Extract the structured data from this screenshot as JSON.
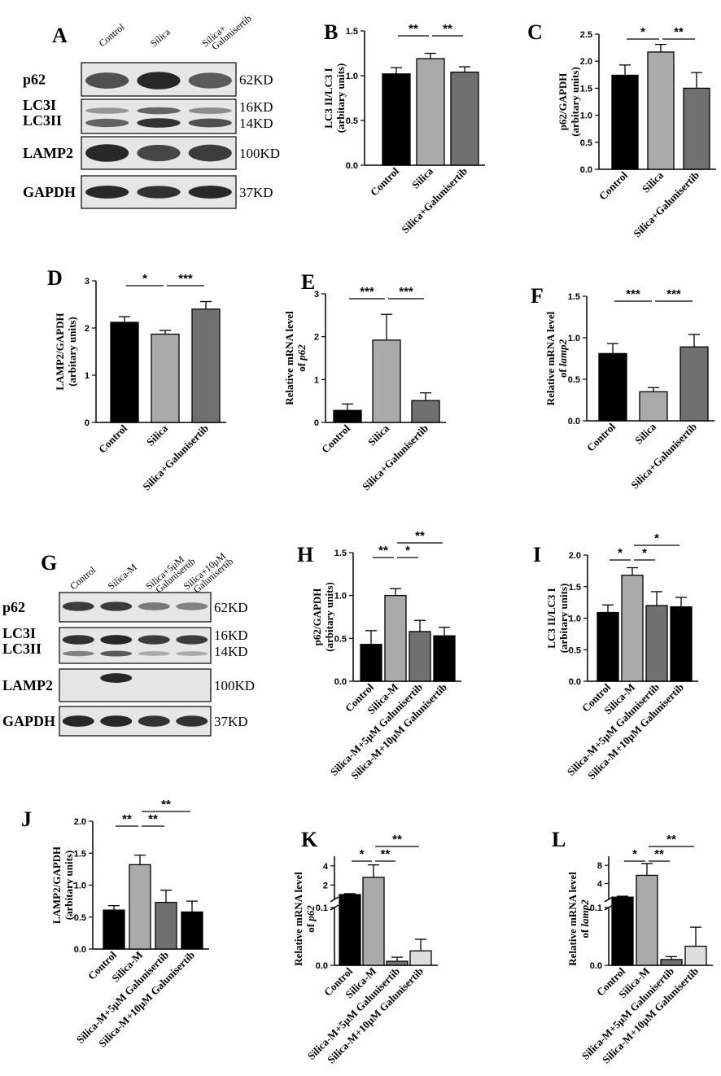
{
  "figure": {
    "blots": [
      {
        "letter": "A",
        "lanes": [
          [
            "Control"
          ],
          [
            "Silica"
          ],
          [
            "Silica+",
            "Galunisertib"
          ]
        ],
        "rows": [
          {
            "proteins": [
              "p62"
            ],
            "sizes": [
              "62KD"
            ]
          },
          {
            "proteins": [
              "LC3I",
              "LC3II"
            ],
            "sizes": [
              "16KD",
              "14KD"
            ]
          },
          {
            "proteins": [
              "LAMP2"
            ],
            "sizes": [
              "100KD"
            ]
          },
          {
            "proteins": [
              "GAPDH"
            ],
            "sizes": [
              "37KD"
            ]
          }
        ]
      },
      {
        "letter": "G",
        "lanes": [
          [
            "Control"
          ],
          [
            "Silica-M"
          ],
          [
            "Silica+5μM",
            "Galunisertib"
          ],
          [
            "Silica+10μM",
            "Galunisertib"
          ]
        ],
        "rows": [
          {
            "proteins": [
              "p62"
            ],
            "sizes": [
              "62KD"
            ]
          },
          {
            "proteins": [
              "LC3I",
              "LC3II"
            ],
            "sizes": [
              "16KD",
              "14KD"
            ]
          },
          {
            "proteins": [
              "LAMP2"
            ],
            "sizes": [
              "100KD"
            ]
          },
          {
            "proteins": [
              "GAPDH"
            ],
            "sizes": [
              "37KD"
            ]
          }
        ]
      }
    ]
  },
  "chart_data": [
    {
      "panel": "B",
      "type": "bar",
      "categories": [
        "Control",
        "Silica",
        "Silica+Galunisertib"
      ],
      "values": [
        1.02,
        1.19,
        1.04
      ],
      "errors": [
        0.07,
        0.06,
        0.06
      ],
      "colors": [
        "#000000",
        "#aaaaaa",
        "#707070"
      ],
      "ylabel": [
        "LC3 II/LC3 I",
        "(arbitary units)"
      ],
      "ylim": [
        0,
        1.5
      ],
      "ticks": [
        "0.0",
        "0.5",
        "1.0",
        "1.5"
      ],
      "significance": [
        {
          "from": 0,
          "to": 1,
          "label": "**"
        },
        {
          "from": 1,
          "to": 2,
          "label": "**"
        }
      ]
    },
    {
      "panel": "C",
      "type": "bar",
      "categories": [
        "Control",
        "Silica",
        "Silica+Galunisertib"
      ],
      "values": [
        1.74,
        2.17,
        1.5
      ],
      "errors": [
        0.19,
        0.14,
        0.29
      ],
      "colors": [
        "#000000",
        "#aaaaaa",
        "#707070"
      ],
      "ylabel": [
        "p62/GAPDH",
        "(arbitary units)"
      ],
      "ylim": [
        0,
        2.5
      ],
      "ticks": [
        "0.0",
        "0.5",
        "1.0",
        "1.5",
        "2.0",
        "2.5"
      ],
      "significance": [
        {
          "from": 0,
          "to": 1,
          "label": "*"
        },
        {
          "from": 1,
          "to": 2,
          "label": "**"
        }
      ]
    },
    {
      "panel": "D",
      "type": "bar",
      "categories": [
        "Control",
        "Silica",
        "Silica+Galunisertib"
      ],
      "values": [
        2.12,
        1.87,
        2.4
      ],
      "errors": [
        0.12,
        0.08,
        0.16
      ],
      "colors": [
        "#000000",
        "#aaaaaa",
        "#707070"
      ],
      "ylabel": [
        "LAMP2/GAPDH",
        "(arbitary units)"
      ],
      "ylim": [
        0,
        3
      ],
      "ticks": [
        "0",
        "1",
        "2",
        "3"
      ],
      "significance": [
        {
          "from": 0,
          "to": 1,
          "label": "*"
        },
        {
          "from": 1,
          "to": 2,
          "label": "***"
        }
      ]
    },
    {
      "panel": "E",
      "type": "bar",
      "categories": [
        "Control",
        "Silica",
        "Silica+Galunisertib"
      ],
      "values": [
        0.28,
        1.92,
        0.51
      ],
      "errors": [
        0.15,
        0.6,
        0.18
      ],
      "colors": [
        "#000000",
        "#aaaaaa",
        "#707070"
      ],
      "ylabel": [
        "Relative mRNA level",
        "of p62"
      ],
      "ylim": [
        0,
        3
      ],
      "ticks": [
        "0",
        "1",
        "2",
        "3"
      ],
      "significance": [
        {
          "from": 0,
          "to": 1,
          "label": "***"
        },
        {
          "from": 1,
          "to": 2,
          "label": "***"
        }
      ]
    },
    {
      "panel": "F",
      "type": "bar",
      "categories": [
        "Control",
        "Silica",
        "Silica+Galunisertib"
      ],
      "values": [
        0.81,
        0.35,
        0.89
      ],
      "errors": [
        0.12,
        0.05,
        0.15
      ],
      "colors": [
        "#000000",
        "#aaaaaa",
        "#707070"
      ],
      "ylabel": [
        "Relative mRNA level",
        "of lamp2"
      ],
      "ylim": [
        0,
        1.5
      ],
      "ticks": [
        "0.0",
        "0.5",
        "1.0",
        "1.5"
      ],
      "significance": [
        {
          "from": 0,
          "to": 1,
          "label": "***"
        },
        {
          "from": 1,
          "to": 2,
          "label": "***"
        }
      ]
    },
    {
      "panel": "H",
      "type": "bar",
      "categories": [
        "Control",
        "Silica-M",
        "Silica-M+5μM Galunisertib",
        "Silica-M+10μM Galunisertib"
      ],
      "values": [
        0.43,
        1.0,
        0.58,
        0.53
      ],
      "errors": [
        0.16,
        0.08,
        0.13,
        0.1
      ],
      "colors": [
        "#000000",
        "#aaaaaa",
        "#707070",
        "#000000"
      ],
      "ylabel": [
        "p62/GAPDH",
        "(arbitary units)"
      ],
      "ylim": [
        0,
        1.5
      ],
      "ticks": [
        "0.0",
        "0.5",
        "1.0",
        "1.5"
      ],
      "significance": [
        {
          "from": 0,
          "to": 1,
          "label": "**"
        },
        {
          "from": 1,
          "to": 2,
          "label": "*"
        },
        {
          "from": 1,
          "to": 3,
          "label": "**"
        }
      ]
    },
    {
      "panel": "I",
      "type": "bar",
      "categories": [
        "Control",
        "Silica-M",
        "Silica-M+5μM Galunisertib",
        "Silica-M+10μM Galunisertib"
      ],
      "values": [
        1.09,
        1.68,
        1.2,
        1.18
      ],
      "errors": [
        0.12,
        0.12,
        0.22,
        0.15
      ],
      "colors": [
        "#000000",
        "#aaaaaa",
        "#707070",
        "#000000"
      ],
      "ylabel": [
        "LC3 II/LC3 I",
        "(arbitary units)"
      ],
      "ylim": [
        0,
        2.0
      ],
      "ticks": [
        "0.0",
        "0.5",
        "1.0",
        "1.5",
        "2.0"
      ],
      "significance": [
        {
          "from": 0,
          "to": 1,
          "label": "*"
        },
        {
          "from": 1,
          "to": 2,
          "label": "*"
        },
        {
          "from": 1,
          "to": 3,
          "label": "*"
        }
      ]
    },
    {
      "panel": "J",
      "type": "bar",
      "categories": [
        "Control",
        "Silica-M",
        "Silica-M+5μM Galunisertib",
        "Silica-M+10μM Galunisertib"
      ],
      "values": [
        0.61,
        1.32,
        0.73,
        0.58
      ],
      "errors": [
        0.07,
        0.15,
        0.19,
        0.17
      ],
      "colors": [
        "#000000",
        "#aaaaaa",
        "#707070",
        "#000000"
      ],
      "ylabel": [
        "LAMP2/GAPDH",
        "(arbitary units)"
      ],
      "ylim": [
        0,
        2.0
      ],
      "ticks": [
        "0.0",
        "0.5",
        "1.0",
        "1.5",
        "2.0"
      ],
      "significance": [
        {
          "from": 0,
          "to": 1,
          "label": "**"
        },
        {
          "from": 1,
          "to": 2,
          "label": "**"
        },
        {
          "from": 1,
          "to": 3,
          "label": "**"
        }
      ]
    },
    {
      "panel": "K",
      "type": "bar",
      "broken_axis": true,
      "categories": [
        "Control",
        "Silica-M",
        "Silica-M+5μM Galunisertib",
        "Silica-M+10μM Galunisertib"
      ],
      "values": [
        1.0,
        2.8,
        0.007,
        0.025
      ],
      "errors": [
        0.1,
        1.3,
        0.007,
        0.02
      ],
      "colors": [
        "#000000",
        "#aaaaaa",
        "#707070",
        "#dddddd"
      ],
      "ylabel": [
        "Relative mRNA level",
        "of p62"
      ],
      "lower_ylim": [
        0,
        0.1
      ],
      "lower_ticks": [
        "0.0",
        "0.1"
      ],
      "upper_ylim": [
        0.5,
        5
      ],
      "upper_ticks": [
        "2",
        "4"
      ],
      "significance": [
        {
          "from": 0,
          "to": 1,
          "label": "*"
        },
        {
          "from": 1,
          "to": 2,
          "label": "**"
        },
        {
          "from": 1,
          "to": 3,
          "label": "**"
        }
      ]
    },
    {
      "panel": "L",
      "type": "bar",
      "broken_axis": true,
      "categories": [
        "Control",
        "Silica-M",
        "Silica-M+5μM Galunisertib",
        "Silica-M+10μM Galunisertib"
      ],
      "values": [
        1.0,
        5.8,
        0.01,
        0.033
      ],
      "errors": [
        0.2,
        2.6,
        0.005,
        0.033
      ],
      "colors": [
        "#000000",
        "#aaaaaa",
        "#707070",
        "#dddddd"
      ],
      "ylabel": [
        "Relative mRNA level",
        "of lamp2"
      ],
      "lower_ylim": [
        0,
        0.1
      ],
      "lower_ticks": [
        "0.0",
        "0.1"
      ],
      "upper_ylim": [
        0.5,
        10
      ],
      "upper_ticks": [
        "4",
        "8"
      ],
      "significance": [
        {
          "from": 0,
          "to": 1,
          "label": "*"
        },
        {
          "from": 1,
          "to": 2,
          "label": "**"
        },
        {
          "from": 1,
          "to": 3,
          "label": "**"
        }
      ]
    }
  ]
}
